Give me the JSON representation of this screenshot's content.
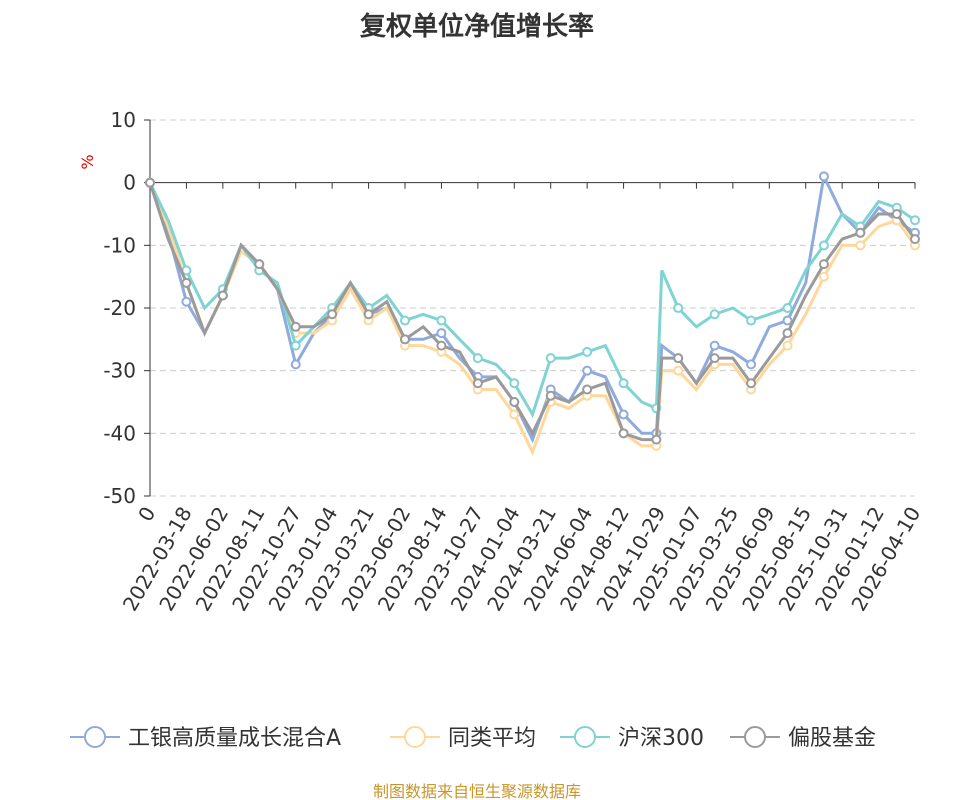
{
  "chart_data": {
    "type": "line",
    "title": "复权单位净值增长率",
    "ylabel": "%",
    "ylim": [
      -50,
      10
    ],
    "yticks": [
      10,
      0,
      -10,
      -20,
      -30,
      -40,
      -50
    ],
    "categories": [
      "0",
      "2022-03-18",
      "2022-06-02",
      "2022-08-11",
      "2022-10-27",
      "2023-01-04",
      "2023-03-21",
      "2023-06-02",
      "2023-08-14",
      "2023-10-27",
      "2024-01-04",
      "2024-03-21",
      "2024-06-04",
      "2024-08-12",
      "2024-10-29",
      "2025-01-07",
      "2025-03-25",
      "2025-06-09",
      "2025-08-15",
      "2025-10-31",
      "2026-01-12",
      "2026-04-10"
    ],
    "x": [
      0,
      0.5,
      1,
      1.5,
      2,
      2.5,
      3,
      3.5,
      4,
      4.5,
      5,
      5.5,
      6,
      6.5,
      7,
      7.5,
      8,
      8.5,
      9,
      9.5,
      10,
      10.5,
      11,
      11.5,
      12,
      12.5,
      13,
      13.5,
      13.9,
      14.05,
      14.5,
      15,
      15.5,
      16,
      16.5,
      17,
      17.5,
      18,
      18.5,
      19,
      19.5,
      20,
      20.5,
      21
    ],
    "series": [
      {
        "name": "工银高质量成长混合A",
        "color": "#8faadc",
        "values": [
          0,
          -8,
          -19,
          -24,
          -18,
          -10,
          -13,
          -17,
          -29,
          -24,
          -21,
          -16,
          -21,
          -20,
          -25,
          -25,
          -24,
          -28,
          -31,
          -31,
          -35,
          -41,
          -33,
          -35,
          -30,
          -31,
          -37,
          -40,
          -40,
          -26,
          -28,
          -32,
          -26,
          -27,
          -29,
          -23,
          -22,
          -16,
          1,
          -5,
          -8,
          -4,
          -6,
          -8
        ]
      },
      {
        "name": "同类平均",
        "color": "#fdd89a",
        "values": [
          0,
          -7,
          -16,
          -24,
          -18,
          -11,
          -13,
          -17,
          -24,
          -24,
          -22,
          -17,
          -22,
          -20,
          -26,
          -26,
          -27,
          -29,
          -33,
          -33,
          -37,
          -43,
          -35,
          -36,
          -34,
          -34,
          -40,
          -42,
          -42,
          -30,
          -30,
          -33,
          -29,
          -29,
          -33,
          -29,
          -26,
          -21,
          -15,
          -10,
          -10,
          -7,
          -6,
          -10
        ]
      },
      {
        "name": "沪深300",
        "color": "#7fd3d3",
        "values": [
          0,
          -6,
          -14,
          -20,
          -17,
          -10,
          -14,
          -16,
          -26,
          -23,
          -20,
          -16,
          -20,
          -18,
          -22,
          -21,
          -22,
          -25,
          -28,
          -29,
          -32,
          -37,
          -28,
          -28,
          -27,
          -26,
          -32,
          -35,
          -36,
          -14,
          -20,
          -23,
          -21,
          -20,
          -22,
          -21,
          -20,
          -14,
          -10,
          -5,
          -7,
          -3,
          -4,
          -6
        ]
      },
      {
        "name": "偏股基金",
        "color": "#9a9a9a",
        "values": [
          0,
          -9,
          -16,
          -24,
          -18,
          -10,
          -13,
          -17,
          -23,
          -23,
          -21,
          -16,
          -21,
          -19,
          -25,
          -23,
          -26,
          -27,
          -32,
          -31,
          -35,
          -40,
          -34,
          -35,
          -33,
          -32,
          -40,
          -41,
          -41,
          -28,
          -28,
          -32,
          -28,
          -28,
          -32,
          -28,
          -24,
          -18,
          -13,
          -9,
          -8,
          -5,
          -5,
          -9
        ]
      }
    ],
    "legend_position": "bottom",
    "grid": true
  },
  "source": "制图数据来自恒生聚源数据库"
}
